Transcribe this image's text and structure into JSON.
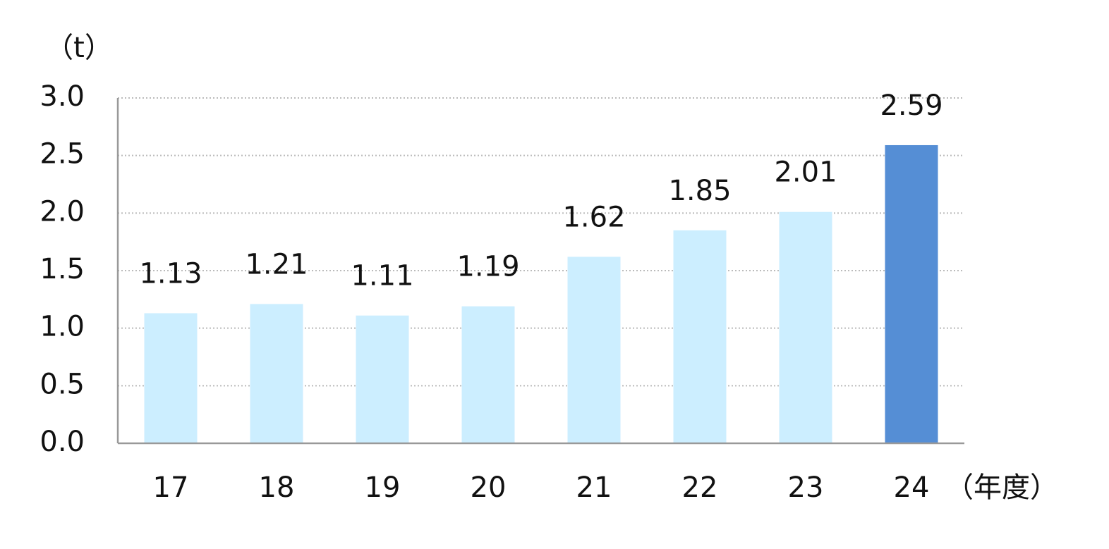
{
  "chart_data": {
    "type": "bar",
    "y_label": "（t）",
    "x_label": "（年度）",
    "categories": [
      "17",
      "18",
      "19",
      "20",
      "21",
      "22",
      "23",
      "24"
    ],
    "values": [
      1.13,
      1.21,
      1.11,
      1.19,
      1.62,
      1.85,
      2.01,
      2.59
    ],
    "colors": [
      "#cceeff",
      "#cceeff",
      "#cceeff",
      "#cceeff",
      "#cceeff",
      "#cceeff",
      "#cceeff",
      "#558ed5"
    ],
    "ylim": [
      0,
      3
    ],
    "yticks": [
      {
        "value": 0,
        "label": "0.0"
      },
      0.5,
      {
        "value": 1,
        "label": "1.0"
      },
      1.5,
      {
        "value": 2,
        "label": "2.0"
      },
      2.5,
      {
        "value": 3,
        "label": "3.0"
      }
    ],
    "grid": true
  }
}
